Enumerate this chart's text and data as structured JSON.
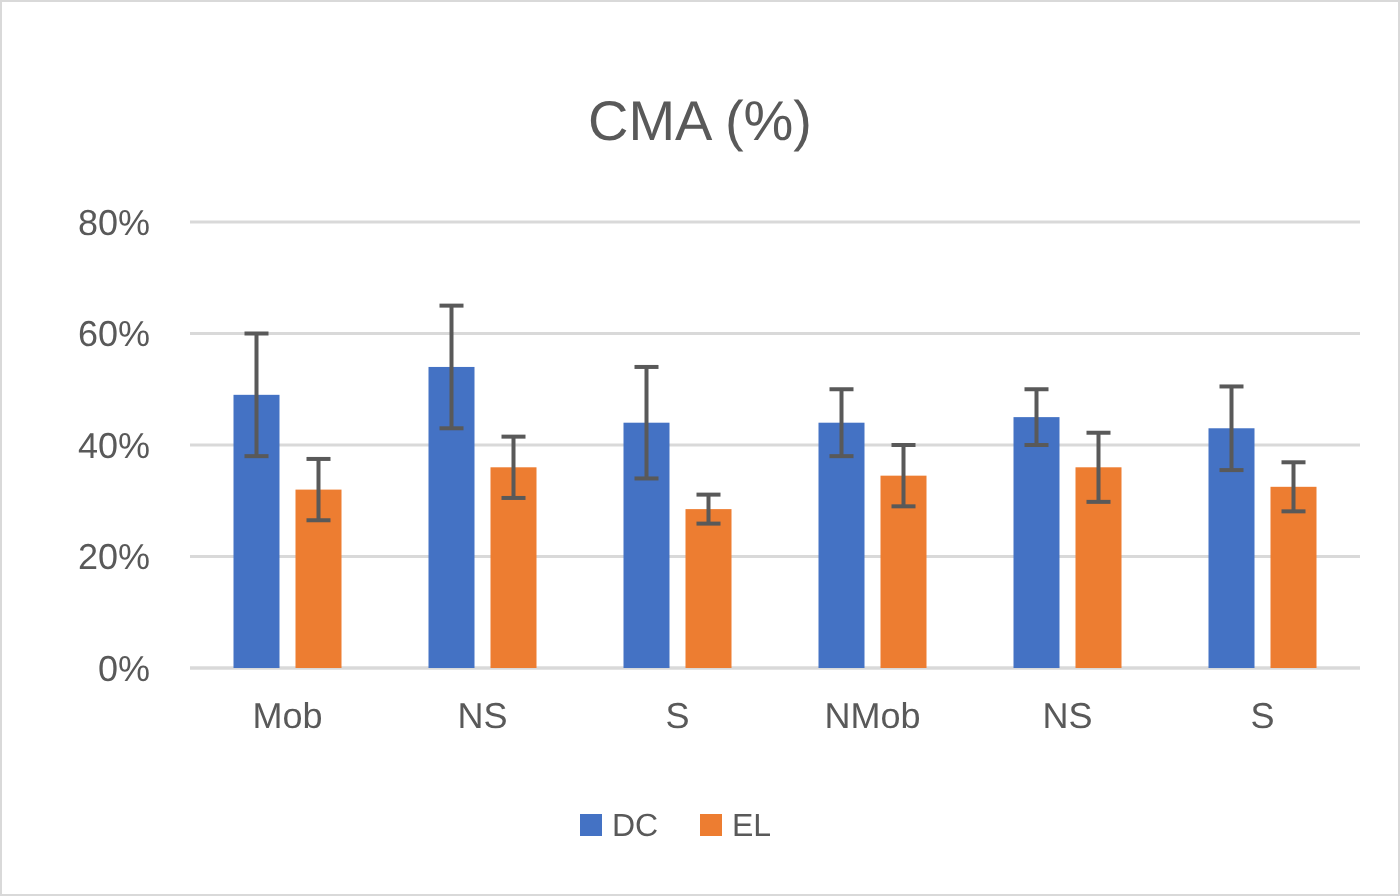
{
  "chart_data": {
    "type": "bar",
    "title": "CMA (%)",
    "categories": [
      "Mob",
      "NS",
      "S",
      "NMob",
      "NS",
      "S"
    ],
    "series": [
      {
        "name": "DC",
        "color": "#4472c4",
        "values": [
          49,
          54,
          44,
          44,
          45,
          43
        ],
        "errors": [
          11,
          11,
          10,
          6,
          5,
          7.5
        ]
      },
      {
        "name": "EL",
        "color": "#ed7d31",
        "values": [
          32,
          36,
          28.5,
          34.5,
          36,
          32.5
        ],
        "errors": [
          5.5,
          5.5,
          2.6,
          5.5,
          6.2,
          4.4
        ]
      }
    ],
    "ylim": [
      0,
      80
    ],
    "yticks": [
      {
        "value": 0,
        "label": "0%"
      },
      {
        "value": 20,
        "label": "20%"
      },
      {
        "value": 40,
        "label": "40%"
      },
      {
        "value": 60,
        "label": "60%"
      },
      {
        "value": 80,
        "label": "80%"
      }
    ],
    "grid": "y",
    "legend": "bottom"
  }
}
